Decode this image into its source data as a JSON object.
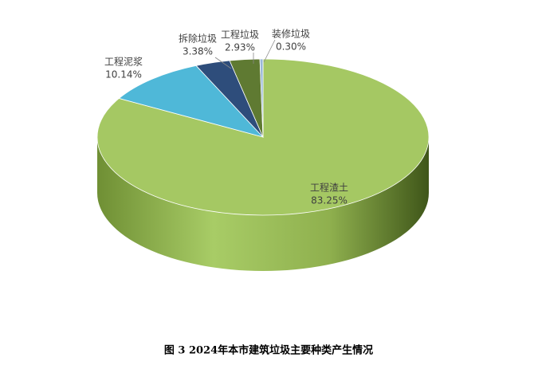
{
  "chart_data": {
    "type": "pie",
    "title": "图 3 2024年本市建筑垃圾主要种类产生情况",
    "categories": [
      "工程渣土",
      "工程泥浆",
      "拆除垃圾",
      "工程垃圾",
      "装修垃圾"
    ],
    "values": [
      83.25,
      10.14,
      3.38,
      2.93,
      0.3
    ],
    "value_labels": [
      "83.25%",
      "10.14%",
      "3.38%",
      "2.93%",
      "0.30%"
    ],
    "colors": [
      "#a5c863",
      "#4fb8d8",
      "#2e4d7b",
      "#5f7a32",
      "#9ab8d8"
    ]
  }
}
